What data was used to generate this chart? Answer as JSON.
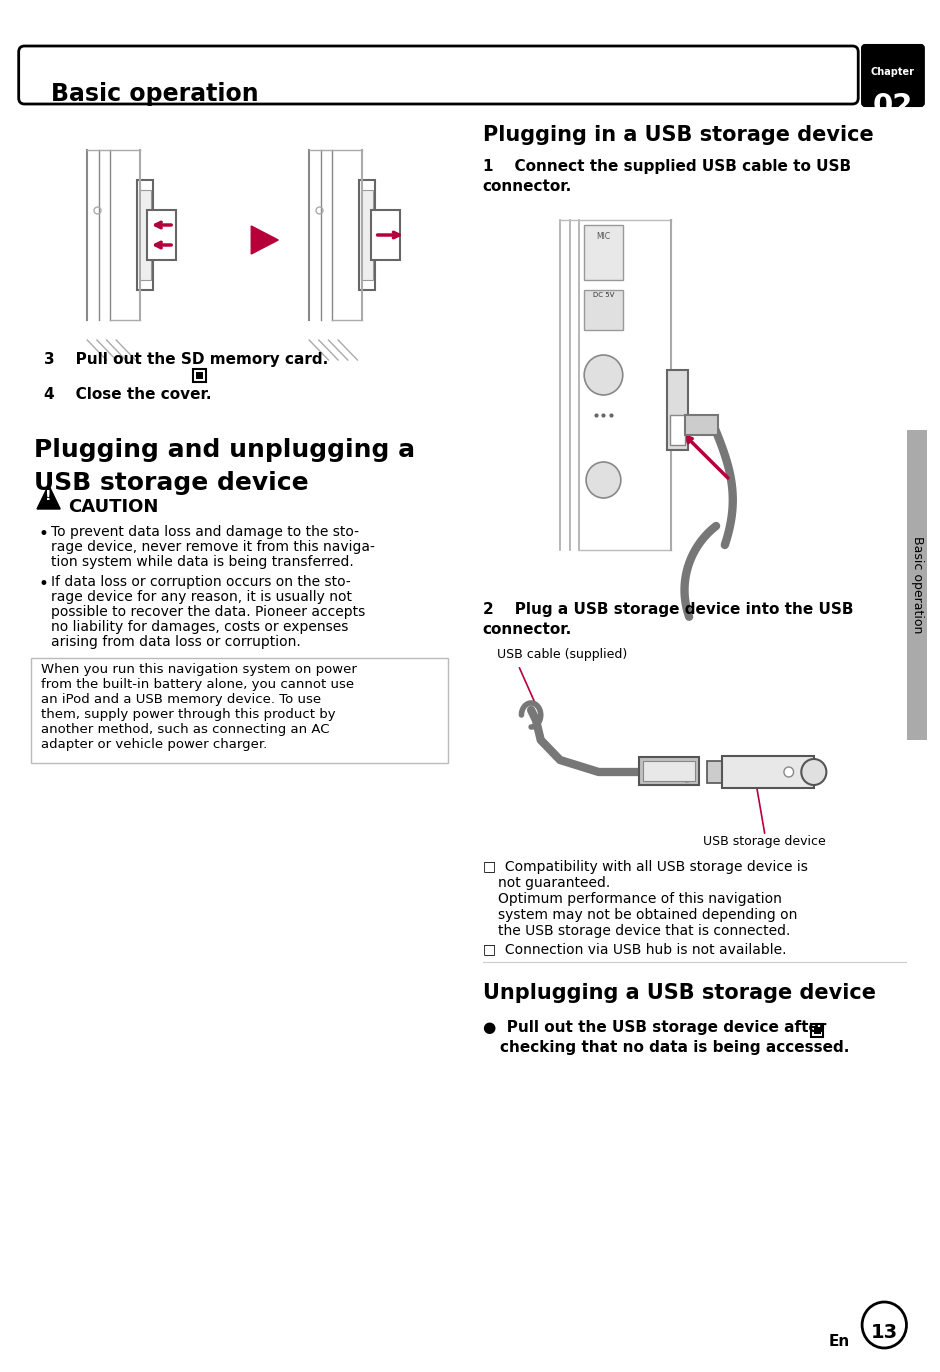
{
  "page_bg": "#ffffff",
  "header_text": "Basic operation",
  "chapter_label": "Chapter",
  "chapter_num": "02",
  "sidebar_text": "Basic operation",
  "footer_en": "En",
  "footer_page": "13",
  "section1_title": "Plugging in a USB storage device",
  "section2_title": "Unplugging a USB storage device",
  "plug_title_l1": "Plugging and unplugging a",
  "plug_title_l2": "USB storage device",
  "caution_title": "CAUTION",
  "caution_b1_l1": "To prevent data loss and damage to the sto-",
  "caution_b1_l2": "rage device, never remove it from this naviga-",
  "caution_b1_l3": "tion system while data is being transferred.",
  "caution_b2_l1": "If data loss or corruption occurs on the sto-",
  "caution_b2_l2": "rage device for any reason, it is usually not",
  "caution_b2_l3": "possible to recover the data. Pioneer accepts",
  "caution_b2_l4": "no liability for damages, costs or expenses",
  "caution_b2_l5": "arising from data loss or corruption.",
  "note_l1": "When you run this navigation system on power",
  "note_l2": "from the built-in battery alone, you cannot use",
  "note_l3": "an iPod and a USB memory device. To use",
  "note_l4": "them, supply power through this product by",
  "note_l5": "another method, such as connecting an AC",
  "note_l6": "adapter or vehicle power charger.",
  "step3": "3    Pull out the SD memory card.",
  "step4": "4    Close the cover.",
  "s1_step1_l1": "1    Connect the supplied USB cable to USB",
  "s1_step1_l2": "connector.",
  "s1_step2_l1": "2    Plug a USB storage device into the USB",
  "s1_step2_l2": "connector.",
  "usb_cable_label": "USB cable (supplied)",
  "usb_storage_label": "USB storage device",
  "note1_l1": "□  Compatibility with all USB storage device is",
  "note1_l2": "not guaranteed.",
  "note1_l3": "Optimum performance of this navigation",
  "note1_l4": "system may not be obtained depending on",
  "note1_l5": "the USB storage device that is connected.",
  "note2": "□  Connection via USB hub is not available.",
  "unplug_l1": "●  Pull out the USB storage device after",
  "unplug_l2": "checking that no data is being accessed.",
  "accent": "#b5003a",
  "black": "#000000",
  "gray_line": "#cccccc",
  "gray_mid": "#888888",
  "gray_light": "#dddddd",
  "sidebar_gray": "#aaaaaa"
}
